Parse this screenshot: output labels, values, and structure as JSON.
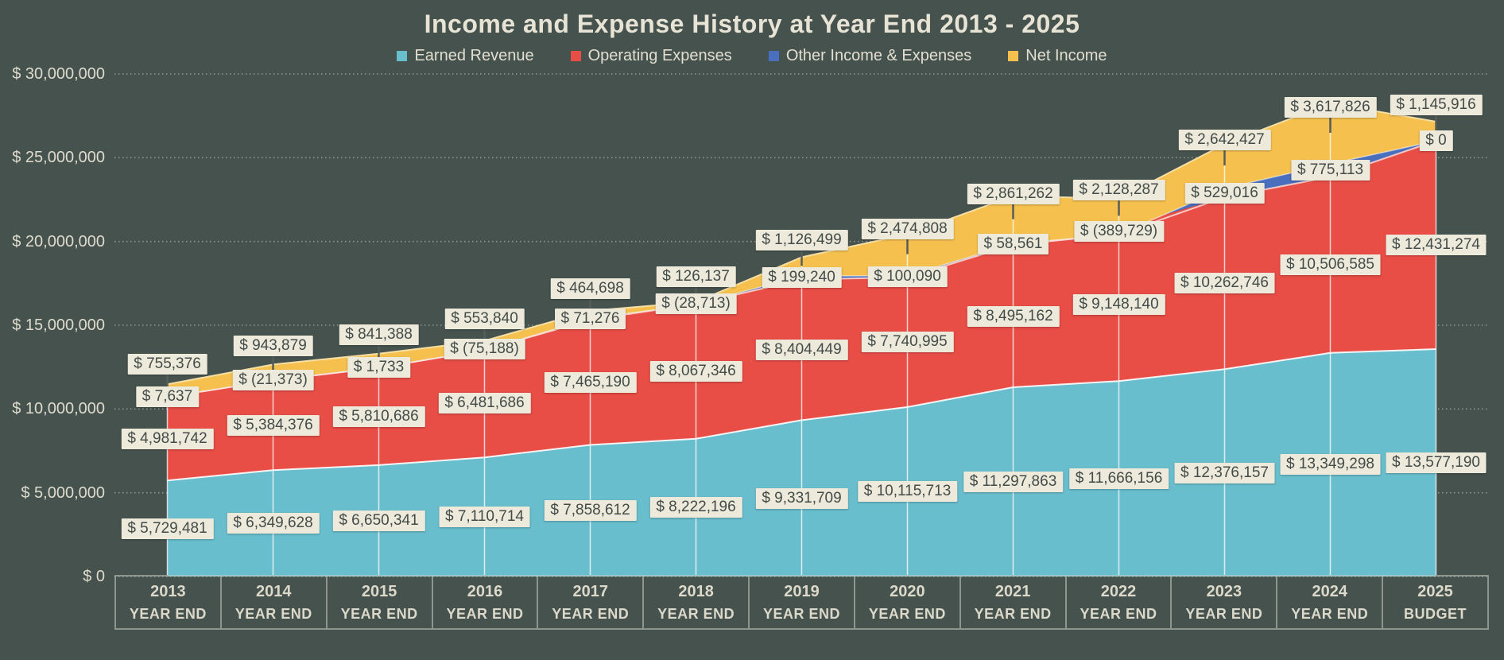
{
  "title": "Income and Expense History at Year End 2013 - 2025",
  "colors": {
    "background": "#46524E",
    "axis_text": "#DFDCCE",
    "label_box_background": "#EDE9DB",
    "label_box_text": "#434C48",
    "gridline": "rgba(205,210,200,0.55)",
    "drop_line": "rgba(255,255,255,0.75)",
    "leader_line": "#575D59"
  },
  "chart_data": {
    "type": "area",
    "stacked": true,
    "title": "Income and Expense History at Year End 2013 - 2025",
    "legend_position": "top",
    "grid": "dotted horizontal",
    "ylim": [
      0,
      30000000
    ],
    "categories": [
      "2013",
      "2014",
      "2015",
      "2016",
      "2017",
      "2018",
      "2019",
      "2020",
      "2021",
      "2022",
      "2023",
      "2024",
      "2025"
    ],
    "category_sublabels": [
      "YEAR END",
      "YEAR END",
      "YEAR END",
      "YEAR END",
      "YEAR END",
      "YEAR END",
      "YEAR END",
      "YEAR END",
      "YEAR END",
      "YEAR END",
      "YEAR END",
      "YEAR END",
      "BUDGET"
    ],
    "y_axis_ticks": [
      {
        "value": 30000000,
        "label": "$ 30,000,000"
      },
      {
        "value": 25000000,
        "label": "$ 25,000,000"
      },
      {
        "value": 20000000,
        "label": "$ 20,000,000"
      },
      {
        "value": 15000000,
        "label": "$ 15,000,000"
      },
      {
        "value": 10000000,
        "label": "$ 10,000,000"
      },
      {
        "value": 5000000,
        "label": "$ 5,000,000"
      },
      {
        "value": 0,
        "label": "$ 0"
      }
    ],
    "series": [
      {
        "name": "Earned Revenue",
        "color": "#69BECD",
        "edge_color": "rgba(255,255,255,0.9)",
        "values": [
          5729481,
          6349628,
          6650341,
          7110714,
          7858612,
          8222196,
          9331709,
          10115713,
          11297863,
          11666156,
          12376157,
          13349298,
          13577190
        ]
      },
      {
        "name": "Operating Expenses",
        "color": "#E84D46",
        "edge_color": "rgba(248,206,200,0.95)",
        "values": [
          4981742,
          5384376,
          5810686,
          6481686,
          7465190,
          8067346,
          8404449,
          7740995,
          8495162,
          9148140,
          10262746,
          10506585,
          12431274
        ]
      },
      {
        "name": "Other Income & Expenses",
        "color": "#4A6FBE",
        "edge_color": "rgba(255,255,255,0.55)",
        "values": [
          7637,
          -21373,
          1733,
          -75188,
          71276,
          -28713,
          199240,
          100090,
          58561,
          -389729,
          529016,
          775113,
          0
        ]
      },
      {
        "name": "Net Income",
        "color": "#F5C04D",
        "edge_color": "rgba(250,227,170,0.95)",
        "values": [
          755376,
          943879,
          841388,
          553840,
          464698,
          126137,
          1126499,
          2474808,
          2861262,
          2128287,
          2642427,
          3617826,
          1145916
        ]
      }
    ],
    "data_label_format": "$ #,##0;$ (#,##0)"
  }
}
